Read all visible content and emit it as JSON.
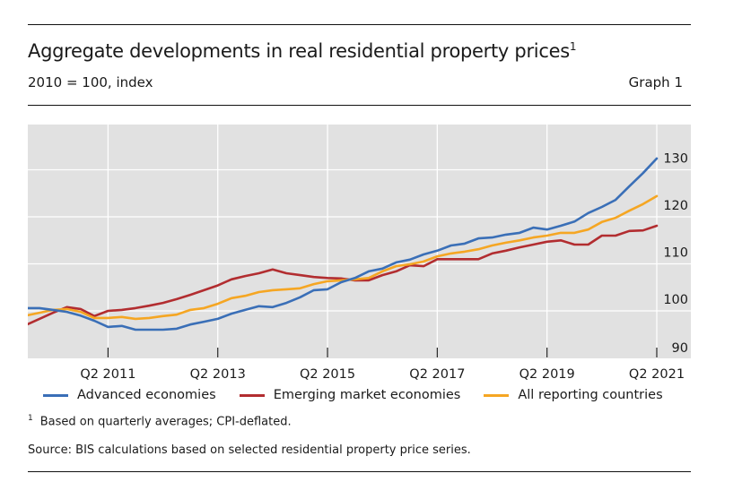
{
  "header": {
    "title": "Aggregate developments in real residential property prices",
    "title_footnote_marker": "1",
    "subtitle": "2010 = 100, index",
    "graph_label": "Graph 1"
  },
  "footnote": {
    "marker": "1",
    "text": "Based on quarterly averages; CPI-deflated."
  },
  "source": "Source: BIS calculations based on selected residential property price series.",
  "chart_data": {
    "type": "line",
    "title": "Aggregate developments in real residential property prices",
    "xlabel": "",
    "ylabel": "2010 = 100, index",
    "ylim": [
      90,
      135
    ],
    "yticks": [
      90,
      100,
      110,
      120,
      130
    ],
    "y_axis_side": "right",
    "grid": true,
    "background": "#e1e1e1",
    "legend_position": "bottom",
    "x_start": "Q4 2009",
    "x_end": "Q2 2021",
    "x_frequency": "quarterly",
    "xtick_labels": [
      "Q2 2011",
      "Q2 2013",
      "Q2 2015",
      "Q2 2017",
      "Q2 2019",
      "Q2 2021"
    ],
    "xtick_index": [
      6,
      14,
      22,
      30,
      38,
      46
    ],
    "series": [
      {
        "name": "Advanced economies",
        "color": "#3a6fb7",
        "values": [
          100.6,
          100.6,
          100.2,
          99.8,
          99.0,
          97.9,
          96.6,
          96.8,
          96.0,
          96.0,
          96.0,
          96.2,
          97.1,
          97.7,
          98.3,
          99.4,
          100.2,
          101.0,
          100.8,
          101.7,
          102.9,
          104.4,
          104.6,
          106.1,
          107.0,
          108.4,
          109.0,
          110.3,
          110.9,
          112.0,
          112.8,
          113.9,
          114.3,
          115.4,
          115.6,
          116.2,
          116.6,
          117.7,
          117.3,
          118.1,
          119.0,
          120.8,
          122.1,
          123.6,
          126.5,
          129.3,
          132.4
        ]
      },
      {
        "name": "Emerging market economies",
        "color": "#b22d30",
        "values": [
          97.0,
          98.3,
          99.6,
          100.8,
          100.4,
          98.9,
          100.0,
          100.2,
          100.6,
          101.1,
          101.7,
          102.5,
          103.4,
          104.4,
          105.4,
          106.7,
          107.4,
          108.0,
          108.8,
          108.0,
          107.6,
          107.2,
          107.0,
          106.9,
          106.5,
          106.5,
          107.6,
          108.4,
          109.7,
          109.5,
          111.0,
          111.0,
          111.0,
          111.0,
          112.2,
          112.8,
          113.5,
          114.1,
          114.7,
          115.0,
          114.1,
          114.1,
          116.0,
          116.0,
          117.0,
          117.1,
          118.1
        ]
      },
      {
        "name": "All reporting countries",
        "color": "#f5a623",
        "values": [
          99.0,
          99.6,
          100.2,
          100.4,
          99.8,
          98.5,
          98.5,
          98.7,
          98.3,
          98.5,
          98.9,
          99.2,
          100.2,
          100.6,
          101.5,
          102.7,
          103.2,
          104.0,
          104.4,
          104.6,
          104.8,
          105.7,
          106.3,
          106.5,
          106.7,
          107.0,
          108.4,
          109.5,
          109.9,
          110.5,
          111.6,
          112.2,
          112.6,
          113.1,
          113.9,
          114.5,
          115.0,
          115.6,
          116.0,
          116.6,
          116.6,
          117.3,
          118.9,
          119.8,
          121.3,
          122.7,
          124.4
        ]
      }
    ]
  }
}
